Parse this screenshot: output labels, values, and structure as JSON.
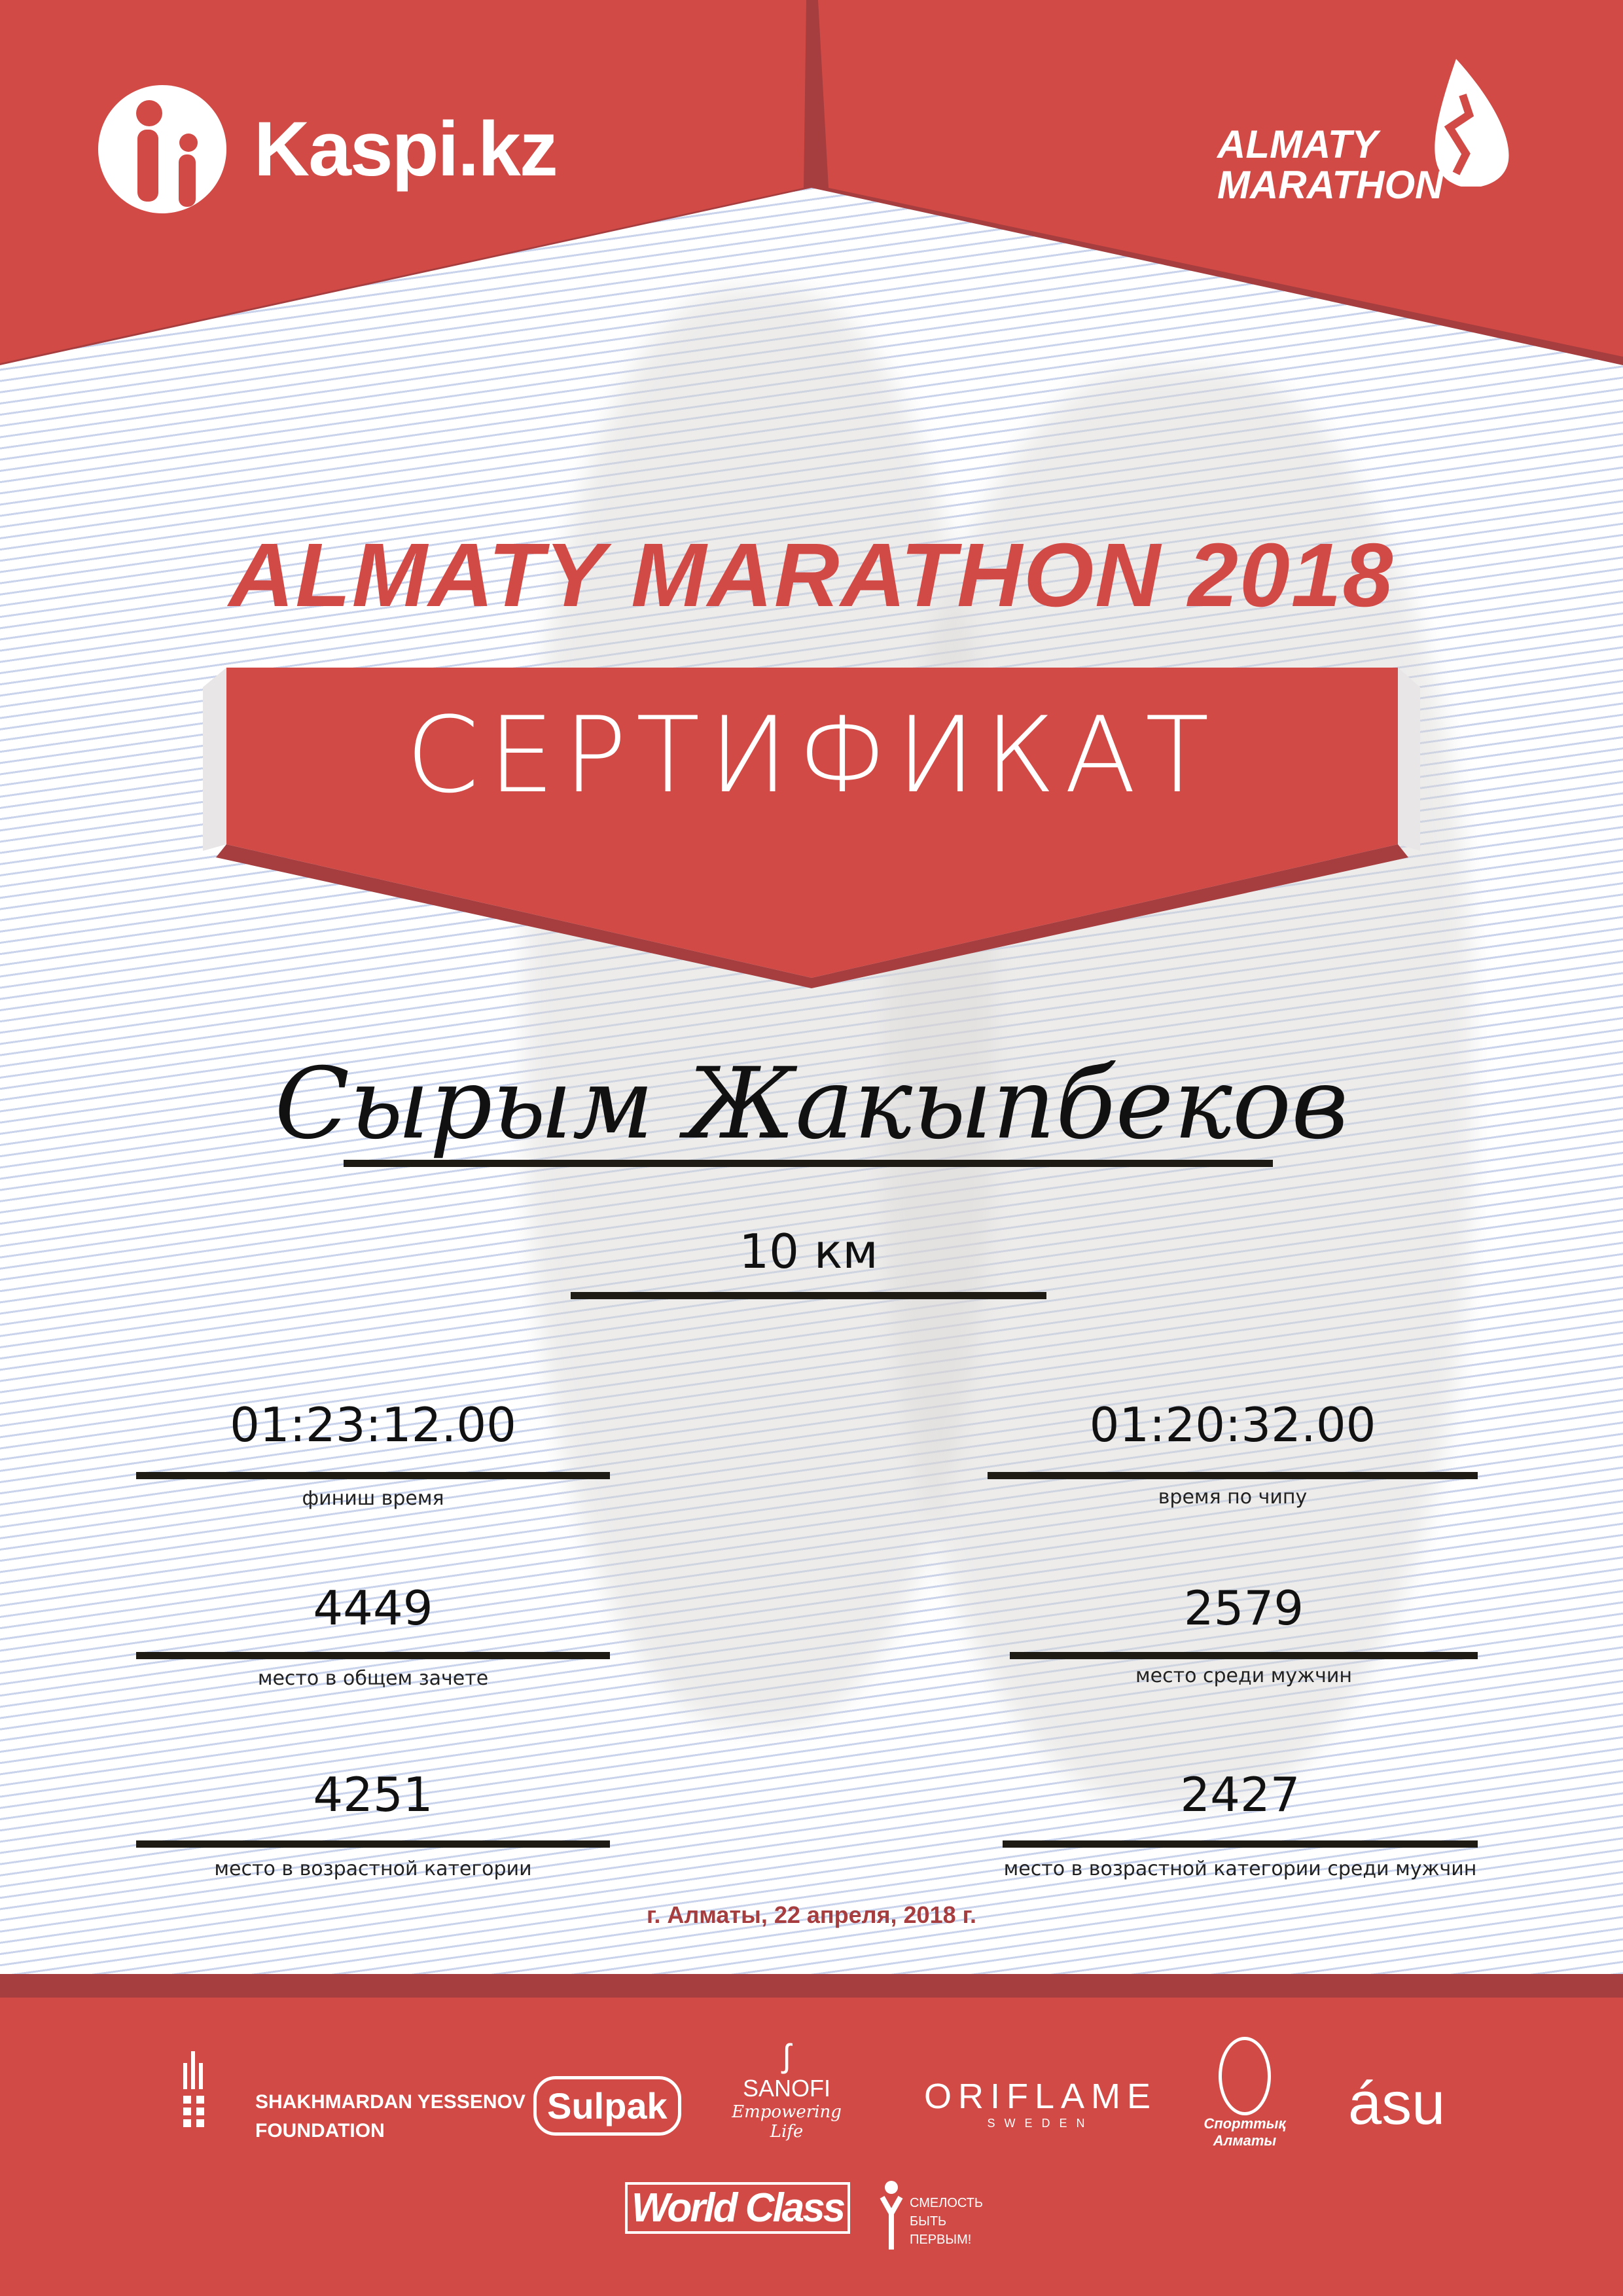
{
  "header": {
    "kaspi_logo": "Kaspi.kz",
    "almaty_logo": [
      "ALMATY",
      "MARATHON"
    ]
  },
  "title": "ALMATY MARATHON 2018",
  "banner": "СЕРТИФИКАТ",
  "participant_name": "Сырым Жакыпбеков",
  "distance": "10 км",
  "results": {
    "finish_time": {
      "value": "01:23:12.00",
      "label": "финиш время"
    },
    "chip_time": {
      "value": "01:20:32.00",
      "label": "время по чипу"
    },
    "overall_place": {
      "value": "4449",
      "label": "место в общем зачете"
    },
    "men_place": {
      "value": "2579",
      "label": "место среди мужчин"
    },
    "age_place": {
      "value": "4251",
      "label": "место в возрастной категории"
    },
    "age_men_place": {
      "value": "2427",
      "label": "место в возрастной категории среди мужчин"
    }
  },
  "date": "г. Алматы, 22 апреля, 2018 г.",
  "sponsors": {
    "yessenov": [
      "SHAKHMARDAN YESSENOV",
      "FOUNDATION"
    ],
    "sulpak": "Sulpak",
    "sanofi": [
      "SANOFI",
      "Empowering Life"
    ],
    "oriflame": [
      "ORIFLAME",
      "SWEDEN"
    ],
    "sport_almaty": [
      "Спорттық",
      "Алматы"
    ],
    "asu": "ásu",
    "world_class": "World Class",
    "smelost": [
      "СМЕЛОСТЬ",
      "БЫТЬ",
      "ПЕРВЫМ!"
    ]
  },
  "colors": {
    "brand_red": "#d24a45",
    "dark_red": "#a63d3f",
    "line_blue": "#c9d3ec"
  }
}
